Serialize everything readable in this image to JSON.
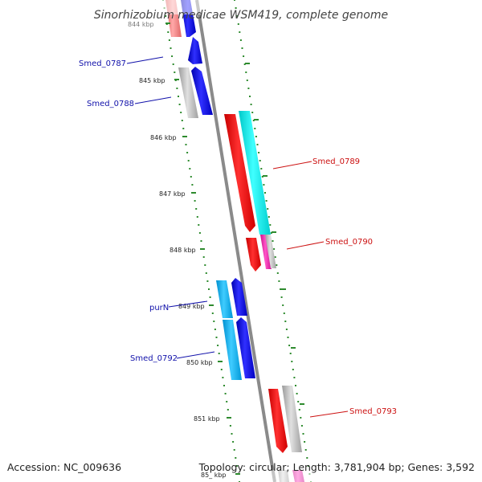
{
  "title": "Sinorhizobium medicae WSM419, complete genome",
  "accession": "Accession: NC_009636",
  "topology": "Topology: circular; Length: 3,781,904 bp; Genes: 3,592",
  "colors": {
    "backbone": "#8a8a8a",
    "tick": "#2e8b2e",
    "forward_label": "#cc1111",
    "reverse_label": "#1111aa",
    "red": "#ff1010",
    "cyan": "#16e6e6",
    "blue": "#1515e0",
    "sky": "#19b4ee",
    "gray": "#b8b8b8",
    "pink": "#ee2aa8",
    "salmon": "#f08080"
  },
  "ticks": [
    "844 kbp",
    "845 kbp",
    "846 kbp",
    "847 kbp",
    "848 kbp",
    "849 kbp",
    "850 kbp",
    "851 kbp",
    "85_ kbp"
  ],
  "genes": [
    {
      "label": "Smed_0787",
      "strand": "reverse"
    },
    {
      "label": "Smed_0788",
      "strand": "reverse"
    },
    {
      "label": "Smed_0789",
      "strand": "forward"
    },
    {
      "label": "Smed_0790",
      "strand": "forward"
    },
    {
      "label": "purN",
      "strand": "reverse"
    },
    {
      "label": "Smed_0792",
      "strand": "reverse"
    },
    {
      "label": "Smed_0793",
      "strand": "forward"
    }
  ]
}
